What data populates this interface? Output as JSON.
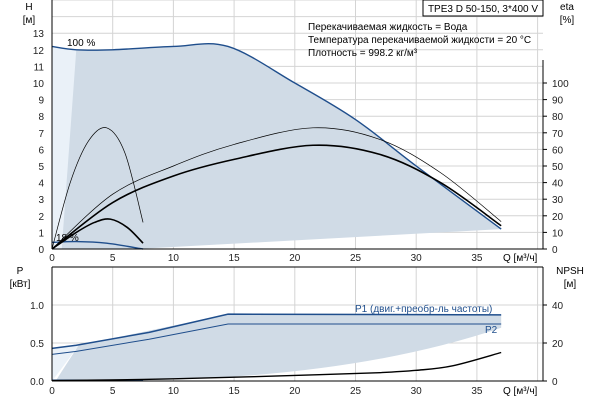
{
  "chart_data": [
    {
      "type": "line",
      "title": "TPE3 D 50-150, 3*400 V",
      "annotations": [
        "Перекачиваемая жидкость = Вода",
        "Температура перекачиваемой жидкости = 20 °C",
        "Плотность = 998.2 кг/м³"
      ],
      "xlabel": "Q [м³/ч]",
      "ylabel_line1": "H",
      "ylabel_line2": "[м]",
      "y2label_line1": "eta",
      "y2label_line2": "[%]",
      "xlim": [
        0,
        40
      ],
      "ylim": [
        0,
        13
      ],
      "y2lim": [
        0,
        100
      ],
      "xticks": [
        "0",
        "5",
        "10",
        "15",
        "20",
        "25",
        "30",
        "35"
      ],
      "yticks": [
        "0",
        "1",
        "2",
        "3",
        "4",
        "5",
        "6",
        "7",
        "8",
        "9",
        "10",
        "11",
        "12",
        "13"
      ],
      "y2ticks": [
        "0",
        "10",
        "20",
        "30",
        "40",
        "50",
        "60",
        "70",
        "80",
        "90",
        "100"
      ],
      "grid": true,
      "curve_labels": {
        "max": "100 %",
        "min": "18 %"
      },
      "colors": {
        "envelope": "#1f4e8c",
        "area": "#d0dbe6",
        "area_light": "#eaf1f8",
        "eta": "#000000"
      },
      "series": [
        {
          "name": "100 %",
          "axis": "H",
          "points": [
            [
              0,
              12.2
            ],
            [
              2,
              12.0
            ],
            [
              5,
              12.0
            ],
            [
              10,
              12.2
            ],
            [
              14.5,
              12.2
            ],
            [
              20,
              10.0
            ],
            [
              25,
              7.8
            ],
            [
              30,
              5.0
            ],
            [
              37,
              1.2
            ]
          ]
        },
        {
          "name": "18 %",
          "axis": "H",
          "points": [
            [
              0,
              0.4
            ],
            [
              2,
              0.45
            ],
            [
              4.5,
              0.35
            ],
            [
              7.5,
              0.0
            ]
          ]
        },
        {
          "axis": "eta",
          "style": "thin",
          "points": [
            [
              0,
              0
            ],
            [
              5,
              33
            ],
            [
              10,
              50
            ],
            [
              15,
              63
            ],
            [
              21.5,
              73
            ],
            [
              27,
              66
            ],
            [
              32,
              46
            ],
            [
              37,
              16.5
            ]
          ]
        },
        {
          "axis": "eta",
          "style": "thick",
          "points": [
            [
              0,
              0
            ],
            [
              5,
              28
            ],
            [
              10,
              44
            ],
            [
              15,
              54
            ],
            [
              21.5,
              62.5
            ],
            [
              27,
              57
            ],
            [
              32,
              40
            ],
            [
              37,
              14
            ]
          ]
        },
        {
          "axis": "eta",
          "style": "thin",
          "points": [
            [
              0,
              0
            ],
            [
              1.5,
              40
            ],
            [
              3,
              65
            ],
            [
              4.5,
              73
            ],
            [
              6,
              58
            ],
            [
              7.5,
              16
            ]
          ]
        },
        {
          "axis": "eta",
          "style": "thick",
          "points": [
            [
              0,
              0
            ],
            [
              2,
              10
            ],
            [
              3.5,
              16
            ],
            [
              4.8,
              18
            ],
            [
              6.2,
              13
            ],
            [
              7.5,
              3.5
            ]
          ]
        }
      ]
    },
    {
      "type": "line",
      "xlabel": "Q [м³/ч]",
      "ylabel_line1": "P",
      "ylabel_line2": "[кВт]",
      "y2label_line1": "NPSH",
      "y2label_line2": "[м]",
      "xlim": [
        0,
        40
      ],
      "ylim": [
        0,
        1.5
      ],
      "y2lim": [
        0,
        60
      ],
      "xticks": [
        "0",
        "5",
        "10",
        "15",
        "20",
        "25",
        "30",
        "35"
      ],
      "yticks": [
        "0.0",
        "0.5",
        "1.0"
      ],
      "y2ticks": [
        "0",
        "20",
        "40"
      ],
      "grid": true,
      "series": [
        {
          "name": "P1 (двиг.+преобр-ль частоты)",
          "axis": "P",
          "points": [
            [
              0,
              0.43
            ],
            [
              2,
              0.47
            ],
            [
              8,
              0.64
            ],
            [
              14.5,
              0.88
            ],
            [
              37,
              0.87
            ]
          ]
        },
        {
          "name": "P2",
          "axis": "P",
          "points": [
            [
              0,
              0.35
            ],
            [
              2,
              0.39
            ],
            [
              8,
              0.55
            ],
            [
              14.5,
              0.75
            ],
            [
              37,
              0.75
            ]
          ]
        },
        {
          "axis": "P",
          "points": [
            [
              0,
              0.01
            ],
            [
              7.5,
              0.01
            ]
          ]
        },
        {
          "axis": "NPSH",
          "points": [
            [
              0,
              0.2
            ],
            [
              7.5,
              0.8
            ],
            [
              15,
              2.0
            ],
            [
              22,
              3.3
            ],
            [
              27,
              4.4
            ],
            [
              30,
              5.6
            ],
            [
              33,
              8
            ],
            [
              37,
              15
            ]
          ]
        }
      ]
    }
  ]
}
